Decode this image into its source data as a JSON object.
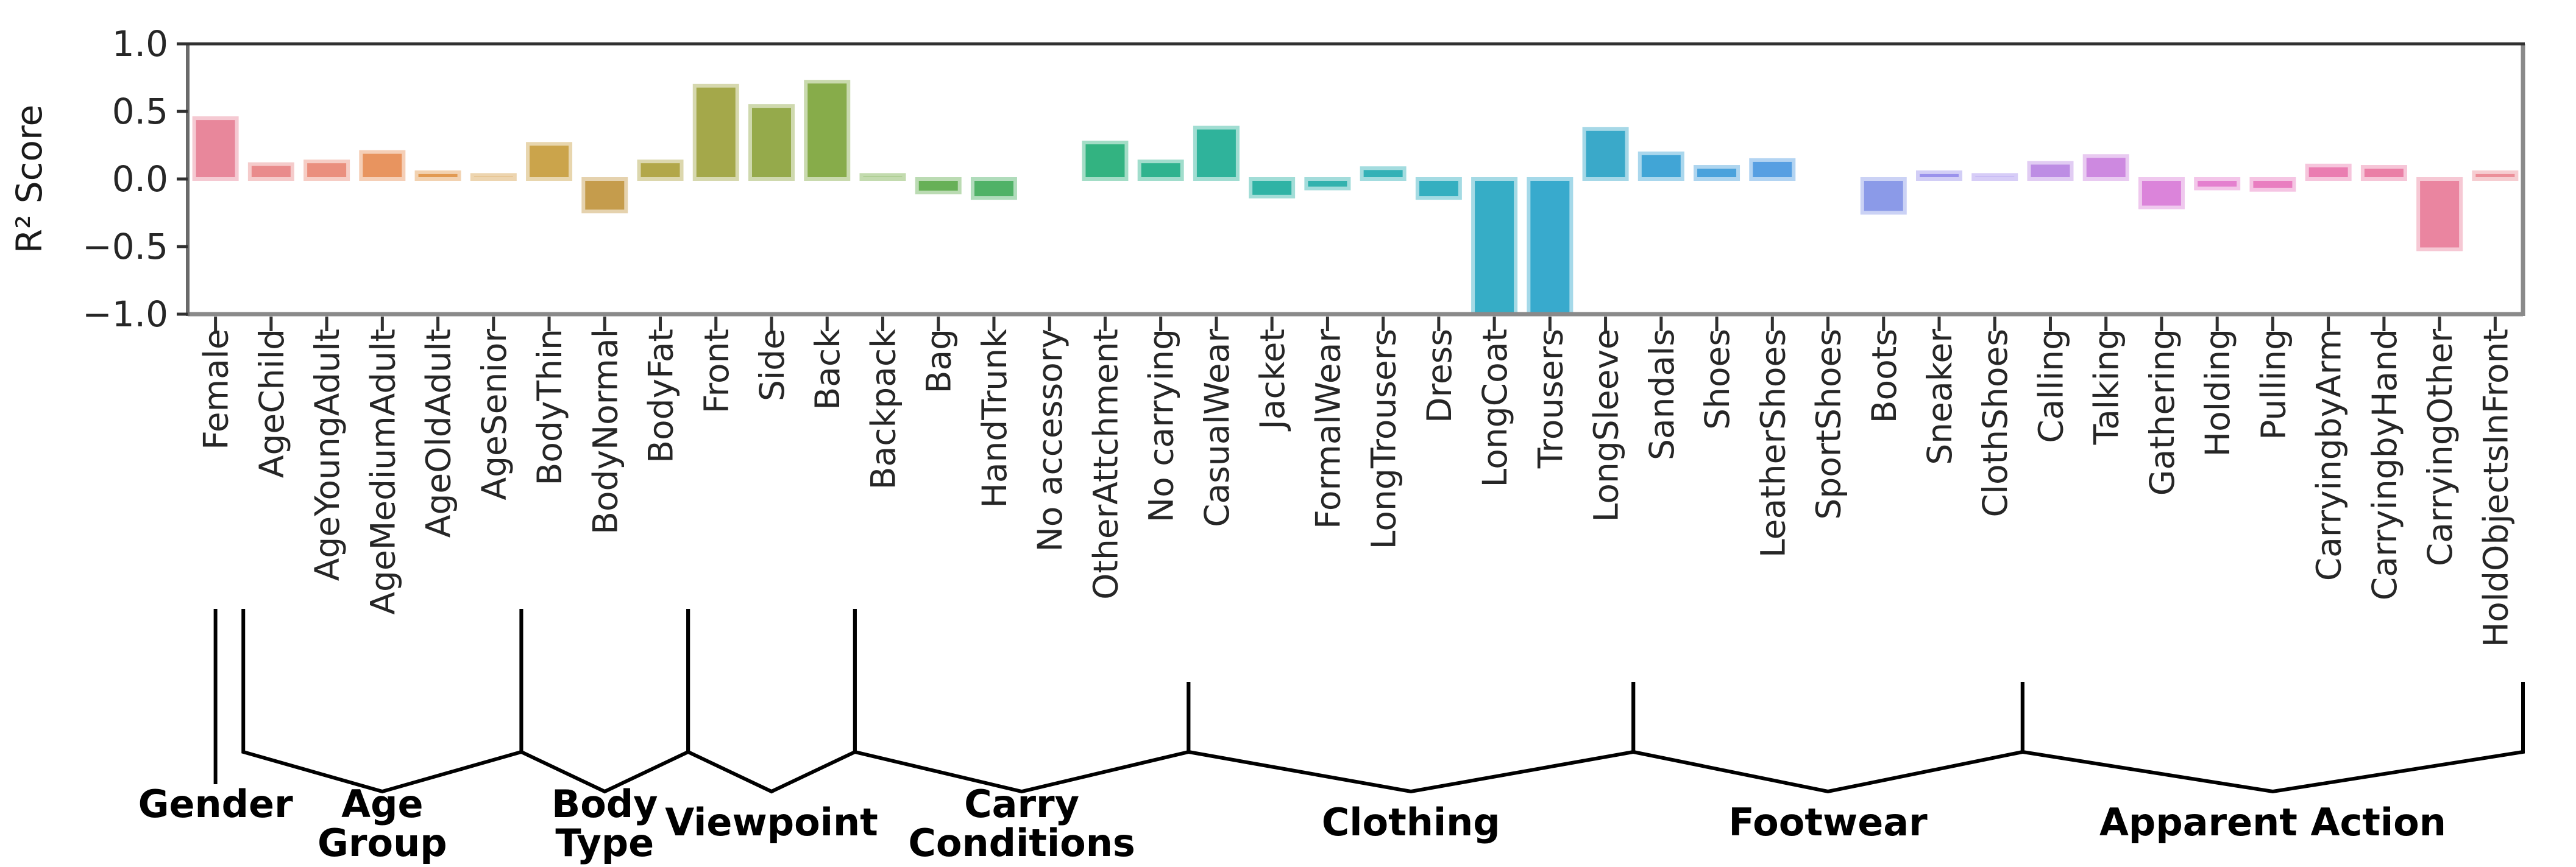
{
  "page": {
    "background": "#ffffff"
  },
  "chart_data": {
    "type": "bar",
    "title": "",
    "xlabel": "",
    "ylabel": "R² Score",
    "ylim": [
      -1.0,
      1.0
    ],
    "ytick_values": [
      1.0,
      0.5,
      0.0,
      -0.5,
      -1.0
    ],
    "ytick_labels": [
      "1.0",
      "0.5",
      "0.0",
      "−0.5",
      "−1.0"
    ],
    "grid": false,
    "legend": null,
    "categories": [
      "Female",
      "AgeChild",
      "AgeYoungAdult",
      "AgeMediumAdult",
      "AgeOldAdult",
      "AgeSenior",
      "BodyThin",
      "BodyNormal",
      "BodyFat",
      "Front",
      "Side",
      "Back",
      "Backpack",
      "Bag",
      "HandTrunk",
      "No accessory",
      "OtherAttchment",
      "No carrying",
      "CasualWear",
      "Jacket",
      "FormalWear",
      "LongTrousers",
      "Dress",
      "LongCoat",
      "Trousers",
      "LongSleeve",
      "Sandals",
      "Shoes",
      "LeatherShoes",
      "SportShoes",
      "Boots",
      "Sneaker",
      "ClothShoes",
      "Calling",
      "Talking",
      "Gathering",
      "Holding",
      "Pulling",
      "CarryingbyArm",
      "CarryingbyHand",
      "CarryingOther",
      "HoldObjectsInFront"
    ],
    "values": [
      0.45,
      0.11,
      0.13,
      0.2,
      0.05,
      0.03,
      0.26,
      -0.24,
      0.13,
      0.69,
      0.54,
      0.72,
      0.03,
      -0.1,
      -0.14,
      0.0,
      0.27,
      0.13,
      0.38,
      -0.13,
      -0.07,
      0.08,
      -0.14,
      -1.0,
      -1.0,
      0.37,
      0.19,
      0.09,
      0.14,
      0.0,
      -0.25,
      0.05,
      0.03,
      0.12,
      0.17,
      -0.21,
      -0.07,
      -0.08,
      0.1,
      0.09,
      -0.52,
      0.05
    ],
    "bar_colors": [
      "#e8879b",
      "#e98b8c",
      "#ea8f7e",
      "#e8945f",
      "#e29a52",
      "#d7a14f",
      "#cba44b",
      "#c59c4c",
      "#b2a749",
      "#a4a84a",
      "#95aa4b",
      "#87ac4a",
      "#79ae4d",
      "#67b057",
      "#50b267",
      "#3cb376",
      "#33b381",
      "#2fb38e",
      "#2fb39b",
      "#30b3a5",
      "#32b2ae",
      "#33b1b7",
      "#35afc0",
      "#36adc6",
      "#38aacd",
      "#3aa9c9",
      "#41a5d6",
      "#4aa2dc",
      "#579fe2",
      "#689be7",
      "#8b9ae8",
      "#9a92ec",
      "#a78fee",
      "#bd8de4",
      "#cd89e0",
      "#db84da",
      "#e480cf",
      "#e97ec0",
      "#ea7db1",
      "#ea7fa6",
      "#ea85a0",
      "#ec8f99"
    ],
    "groups": [
      {
        "label": "Gender",
        "label_lines": [
          "Gender"
        ],
        "start": 0,
        "end": 0
      },
      {
        "label": "Age Group",
        "label_lines": [
          "Age",
          "Group"
        ],
        "start": 1,
        "end": 5
      },
      {
        "label": "Body Type",
        "label_lines": [
          "Body",
          "Type"
        ],
        "start": 6,
        "end": 8
      },
      {
        "label": "Viewpoint",
        "label_lines": [
          "Viewpoint"
        ],
        "start": 9,
        "end": 11
      },
      {
        "label": "Carry Conditions",
        "label_lines": [
          "Carry",
          "Conditions"
        ],
        "start": 12,
        "end": 17
      },
      {
        "label": "Clothing",
        "label_lines": [
          "Clothing"
        ],
        "start": 18,
        "end": 25
      },
      {
        "label": "Footwear",
        "label_lines": [
          "Footwear"
        ],
        "start": 26,
        "end": 32
      },
      {
        "label": "Apparent Action",
        "label_lines": [
          "Apparent Action"
        ],
        "start": 33,
        "end": 41
      }
    ]
  }
}
